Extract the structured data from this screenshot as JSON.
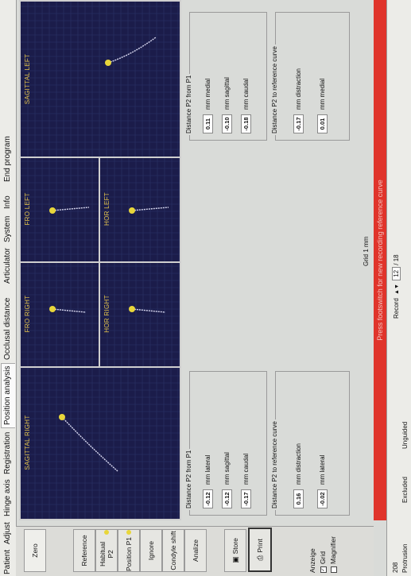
{
  "tabs": [
    "Patient",
    "Adjust",
    "Hinge axis",
    "Registration",
    "Position analysis",
    "Occlusal distance",
    "Articulator",
    "System",
    "Info",
    "End program"
  ],
  "active_tab": "Position analysis",
  "sidebar": {
    "zero": "Zero",
    "reference": "Reference",
    "habitual_p2": "Habitual P2",
    "position_p1": "Position P1",
    "ignore": "Ignore",
    "condyle_shift": "Condyle shift",
    "analize": "Analize",
    "store": "Store",
    "print": "Print",
    "anzeige": "Anzeige",
    "grid": "Grid",
    "magnifier": "Magnifier"
  },
  "plots": {
    "sagittal_right": "SAGITTAL RIGHT",
    "fro_right": "FRO RIGHT",
    "fro_left": "FRO LEFT",
    "hor_right": "HOR RIGHT",
    "hor_left": "HOR LEFT",
    "sagittal_left": "SAGITTAL LEFT"
  },
  "right": {
    "p2_title": "Distance P2 from P1",
    "p2": [
      {
        "value": "-0.12",
        "label": "mm lateral"
      },
      {
        "value": "-0.12",
        "label": "mm sagittal"
      },
      {
        "value": "-0.17",
        "label": "mm caudal"
      }
    ],
    "ref_title": "Distance P2 to reference curve",
    "ref": [
      {
        "value": "0.16",
        "label": "mm distraction"
      },
      {
        "value": "-0.02",
        "label": "mm lateral"
      }
    ]
  },
  "left": {
    "p2_title": "Distance P2 from P1",
    "p2": [
      {
        "value": "0.11",
        "label": "mm medial"
      },
      {
        "value": "-0.10",
        "label": "mm sagittal"
      },
      {
        "value": "-0.18",
        "label": "mm caudal"
      }
    ],
    "ref_title": "Distance P2 to reference curve",
    "ref": [
      {
        "value": "-0.17",
        "label": "mm distraction"
      },
      {
        "value": "0.01",
        "label": "mm medial"
      }
    ]
  },
  "grid_label": "Grid 1 mm",
  "alert": "Press footswitch for new recording reference curve",
  "status": {
    "left_code": "208",
    "protrusion": "Protrusion",
    "excluded": "Excluded",
    "unguided": "Unguided",
    "record_label": "Record",
    "record_current": "12",
    "record_total": "/ 18"
  },
  "colors": {
    "plot_bg": "#1b1c4a",
    "trace": "#d8d8f0",
    "marker": "#e8d63a",
    "alert": "#e0342b"
  }
}
